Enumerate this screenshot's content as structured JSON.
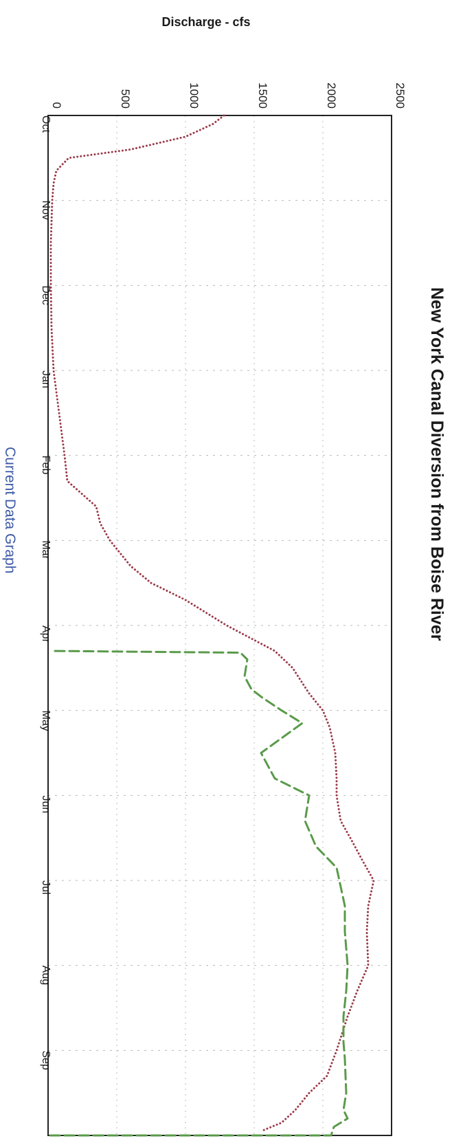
{
  "chart_data": {
    "type": "line",
    "title": "New York Canal Diversion from Boise River",
    "ylabel": "Discharge - cfs",
    "caption": "Current Data Graph",
    "categories": [
      "Oct",
      "Nov",
      "Dec",
      "Jan",
      "Feb",
      "Mar",
      "Apr",
      "May",
      "Jun",
      "Jul",
      "Aug",
      "Sep"
    ],
    "ylim": [
      0,
      2500
    ],
    "yticks": [
      0,
      500,
      1000,
      1500,
      2000,
      2500
    ],
    "yticks_labels": [
      "0",
      "500",
      "1000",
      "1500",
      "2000",
      "2500"
    ],
    "xlim": [
      0,
      12
    ],
    "grid": true,
    "orientation": "rotated-90-clockwise",
    "series": [
      {
        "style": "dotted",
        "color": "#9b3b4a",
        "x": [
          0.0,
          0.1,
          0.25,
          0.4,
          0.5,
          0.65,
          0.8,
          1.0,
          1.5,
          2.0,
          2.5,
          3.0,
          3.5,
          4.0,
          4.3,
          4.6,
          4.8,
          5.0,
          5.3,
          5.5,
          5.7,
          6.0,
          6.3,
          6.5,
          6.8,
          7.0,
          7.2,
          7.5,
          7.8,
          8.0,
          8.3,
          8.5,
          8.8,
          9.0,
          9.3,
          9.6,
          10.0,
          10.3,
          10.6,
          11.0,
          11.3,
          11.5,
          11.7,
          11.85,
          11.95
        ],
        "y": [
          1280,
          1200,
          1000,
          600,
          150,
          60,
          40,
          30,
          20,
          20,
          25,
          40,
          80,
          120,
          140,
          350,
          380,
          450,
          600,
          750,
          1000,
          1300,
          1650,
          1780,
          1900,
          2000,
          2050,
          2090,
          2100,
          2100,
          2130,
          2200,
          2300,
          2370,
          2330,
          2320,
          2330,
          2250,
          2180,
          2100,
          2030,
          1900,
          1800,
          1700,
          1550
        ]
      },
      {
        "style": "dashed",
        "color": "#5a9a4a",
        "x": [
          6.3,
          6.32,
          6.4,
          6.6,
          6.75,
          6.85,
          7.0,
          7.15,
          7.5,
          7.8,
          8.0,
          8.3,
          8.6,
          8.85,
          9.0,
          9.3,
          9.6,
          10.0,
          10.3,
          10.6,
          10.9,
          11.1,
          11.5,
          11.7,
          11.8,
          11.9,
          12.0,
          12.0
        ],
        "y": [
          50,
          1400,
          1450,
          1430,
          1480,
          1560,
          1700,
          1850,
          1550,
          1650,
          1900,
          1870,
          1950,
          2100,
          2120,
          2160,
          2160,
          2180,
          2170,
          2150,
          2150,
          2160,
          2170,
          2150,
          2180,
          2080,
          2060,
          0
        ]
      }
    ]
  }
}
